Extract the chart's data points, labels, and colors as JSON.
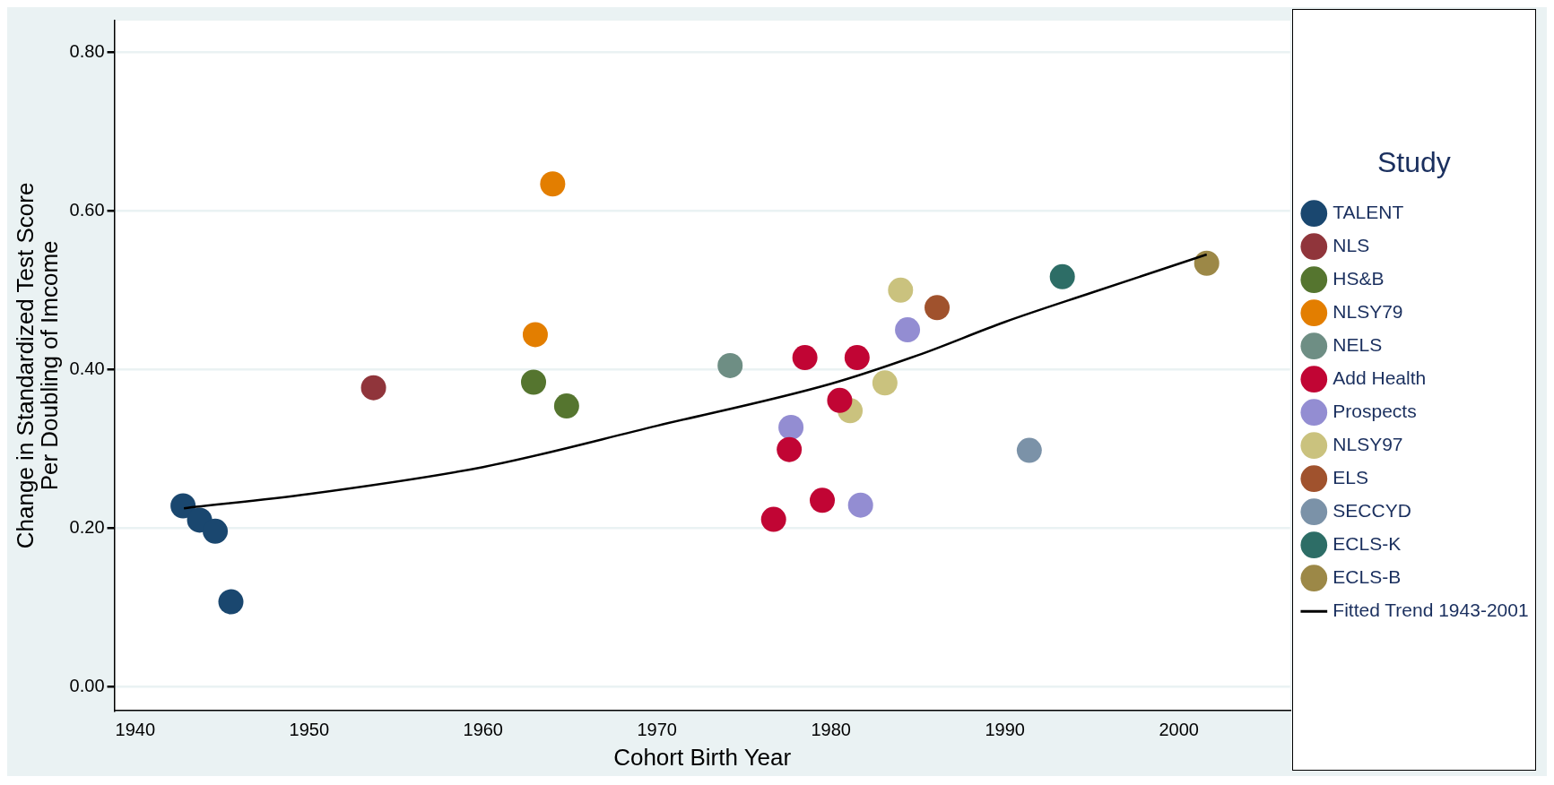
{
  "chart_data": {
    "type": "scatter",
    "xlabel": "Cohort Birth Year",
    "ylabel": "Change in Standardized Test Score\nPer Doubling of Imcome",
    "legend_title": "Study",
    "legend": "right",
    "grid": "y",
    "marker": "circle",
    "xlim": [
      1938.8,
      2006.4
    ],
    "ylim": [
      -0.03,
      0.84
    ],
    "xticks": [
      1940,
      1950,
      1960,
      1970,
      1980,
      1990,
      2000
    ],
    "yticks": [
      {
        "value": 0,
        "label": "0.00"
      },
      {
        "value": 0.2,
        "label": "0.20"
      },
      {
        "value": 0.4,
        "label": "0.40"
      },
      {
        "value": 0.6,
        "label": "0.60"
      },
      {
        "value": 0.8,
        "label": "0.80"
      }
    ],
    "series": [
      {
        "name": "TALENT",
        "color": "#1a476f",
        "x": [
          1942.75,
          1943.7,
          1944.6,
          1945.5
        ],
        "values": [
          0.228,
          0.21,
          0.196,
          0.107
        ]
      },
      {
        "name": "NLS",
        "color": "#90353b",
        "x": [
          1953.7
        ],
        "values": [
          0.377
        ]
      },
      {
        "name": "HS&B",
        "color": "#55752f",
        "x": [
          1962.9,
          1964.8
        ],
        "values": [
          0.384,
          0.354
        ]
      },
      {
        "name": "NLSY79",
        "color": "#e37e00",
        "x": [
          1964.0,
          1963.0
        ],
        "values": [
          0.634,
          0.444
        ]
      },
      {
        "name": "NELS",
        "color": "#6e8e84",
        "x": [
          1974.2
        ],
        "values": [
          0.405
        ]
      },
      {
        "name": "Add Health",
        "color": "#c10534",
        "x": [
          1978.5,
          1981.5,
          1980.5,
          1977.6,
          1979.5,
          1976.7
        ],
        "values": [
          0.415,
          0.415,
          0.361,
          0.299,
          0.235,
          0.211
        ]
      },
      {
        "name": "Prospects",
        "color": "#938dd2",
        "x": [
          1984.4,
          1977.7,
          1981.7
        ],
        "values": [
          0.45,
          0.327,
          0.229
        ]
      },
      {
        "name": "NLSY97",
        "color": "#cac27e",
        "x": [
          1984.0,
          1983.1,
          1981.1
        ],
        "values": [
          0.5,
          0.383,
          0.348
        ]
      },
      {
        "name": "ELS",
        "color": "#a0522d",
        "x": [
          1986.1
        ],
        "values": [
          0.478
        ]
      },
      {
        "name": "SECCYD",
        "color": "#7b92a8",
        "x": [
          1991.4
        ],
        "values": [
          0.298
        ]
      },
      {
        "name": "ECLS-K",
        "color": "#2d6d66",
        "x": [
          1993.3
        ],
        "values": [
          0.517
        ]
      },
      {
        "name": "ECLS-B",
        "color": "#9c8847",
        "x": [
          2001.6
        ],
        "values": [
          0.534
        ]
      },
      {
        "name": "Fitted Trend 1943-2001",
        "type": "line",
        "marker": "none",
        "color": "#000000",
        "x": [
          1942.8,
          1950,
          1960,
          1970,
          1980,
          1985,
          1990,
          1995,
          2001.6
        ],
        "values": [
          0.225,
          0.243,
          0.277,
          0.329,
          0.382,
          0.418,
          0.46,
          0.497,
          0.545
        ]
      }
    ]
  }
}
